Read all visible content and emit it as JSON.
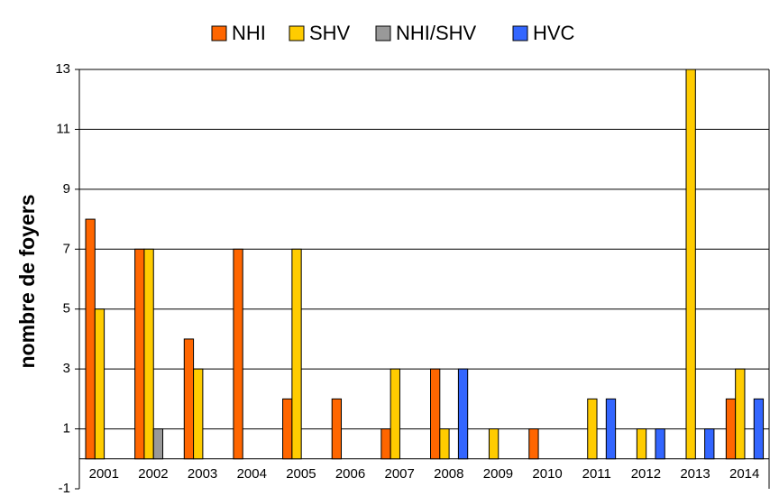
{
  "chart_data": {
    "type": "bar",
    "y_label": "nombre de foyers",
    "categories": [
      "2001",
      "2002",
      "2003",
      "2004",
      "2005",
      "2006",
      "2007",
      "2008",
      "2009",
      "2010",
      "2011",
      "2012",
      "2013",
      "2014"
    ],
    "series": [
      {
        "name": "NHI",
        "color": "#ff6600",
        "values": [
          8,
          7,
          4,
          7,
          2,
          2,
          1,
          3,
          0,
          1,
          0,
          0,
          0,
          2
        ]
      },
      {
        "name": "SHV",
        "color": "#ffcc00",
        "values": [
          5,
          7,
          3,
          0,
          7,
          0,
          3,
          1,
          1,
          0,
          2,
          1,
          13,
          3
        ]
      },
      {
        "name": "NHI/SHV",
        "color": "#999999",
        "values": [
          0,
          1,
          0,
          0,
          0,
          0,
          0,
          0,
          0,
          0,
          0,
          0,
          0,
          0
        ]
      },
      {
        "name": "HVC",
        "color": "#3366ff",
        "values": [
          0,
          0,
          0,
          0,
          0,
          0,
          0,
          3,
          0,
          0,
          2,
          1,
          1,
          2
        ]
      }
    ],
    "ylim": [
      -1,
      13
    ],
    "yticks": [
      -1,
      1,
      3,
      5,
      7,
      9,
      11,
      13
    ],
    "grid": true,
    "legend": "top"
  }
}
